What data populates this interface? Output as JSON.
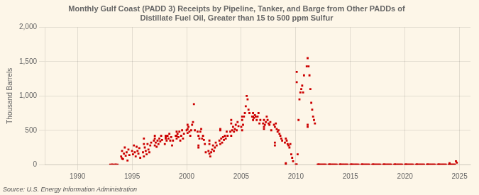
{
  "chart_data": {
    "type": "scatter",
    "title": "Monthly Gulf Coast (PADD 3) Receipts by Pipeline, Tanker, and Barge from Other PADDs of\nDistillate Fuel Oil, Greater than 15 to 500 ppm Sulfur",
    "ylabel": "Thousand Barrels",
    "annotation": "Source: U.S. Energy Information Administration",
    "color": "#cc0000",
    "marker": "square",
    "grid": true,
    "xlim": [
      1987,
      2026
    ],
    "xticks": [
      1990,
      1995,
      2000,
      2005,
      2010,
      2015,
      2020,
      2025
    ],
    "ylim": [
      0,
      2000
    ],
    "yticks": [
      0,
      500,
      {
        "value": 1000,
        "label": "1,000"
      },
      {
        "value": 1500,
        "label": "1,500"
      },
      {
        "value": 2000,
        "label": "2,000"
      }
    ],
    "x": [
      1993,
      1993.1666666667,
      1993.3333333333,
      1993.5,
      1993.6666666667,
      1994,
      1994.0833333333,
      1994.1666666667,
      1994.25,
      1994.3333333333,
      1994.4166666667,
      1994.5,
      1994.5833333333,
      1994.6666666667,
      1994.75,
      1994.0833333333,
      1995,
      1995.0833333333,
      1995.1666666667,
      1995.25,
      1995.3333333333,
      1995.4166666667,
      1995.5,
      1995.5833333333,
      1995.6666666667,
      1995.75,
      1996,
      1996.0833333333,
      1996.1666666667,
      1996.25,
      1996.3333333333,
      1996.4166666667,
      1996.5,
      1996.5833333333,
      1996.6666666667,
      1996.75,
      1996.0833333333,
      1996.0833333333,
      1997,
      1997.0833333333,
      1997.1666666667,
      1997.25,
      1997.3333333333,
      1997.4166666667,
      1997.5,
      1997.5833333333,
      1997.6666666667,
      1997.75,
      1997.0833333333,
      1997.0833333333,
      1998,
      1998.0833333333,
      1998.1666666667,
      1998.25,
      1998.3333333333,
      1998.4166666667,
      1998.5,
      1998.5833333333,
      1998.6666666667,
      1998.75,
      1998.0833333333,
      1998.0833333333,
      1999,
      1999.0833333333,
      1999.1666666667,
      1999.25,
      1999.3333333333,
      1999.4166666667,
      1999.5,
      1999.5833333333,
      1999.6666666667,
      1999.75,
      1999.0833333333,
      1999.0833333333,
      2000,
      2000.0833333333,
      2000.1666666667,
      2000.25,
      2000.3333333333,
      2000.4166666667,
      2000.5,
      2000.5833333333,
      2000.6666666667,
      2000.75,
      2000.0833333333,
      2000.0833333333,
      2001,
      2001.0833333333,
      2001.1666666667,
      2001.25,
      2001.3333333333,
      2001.4166666667,
      2001.5,
      2001.5833333333,
      2001.6666666667,
      2001.75,
      2001.0833333333,
      2001.0833333333,
      2002,
      2002.0833333333,
      2002.1666666667,
      2002.25,
      2002.3333333333,
      2002.4166666667,
      2002.5,
      2002.5833333333,
      2002.6666666667,
      2002.75,
      2002.0833333333,
      2002.0833333333,
      2003,
      2003.0833333333,
      2003.1666666667,
      2003.25,
      2003.3333333333,
      2003.4166666667,
      2003.5,
      2003.5833333333,
      2003.6666666667,
      2003.75,
      2003.0833333333,
      2003.0833333333,
      2004,
      2004.0833333333,
      2004.1666666667,
      2004.25,
      2004.3333333333,
      2004.4166666667,
      2004.5,
      2004.5833333333,
      2004.6666666667,
      2004.75,
      2004.0833333333,
      2004.0833333333,
      2005,
      2005.0833333333,
      2005.1666666667,
      2005.25,
      2005.3333333333,
      2005.4166666667,
      2005.5,
      2005.5833333333,
      2005.6666666667,
      2005.75,
      2005.0833333333,
      2005.0833333333,
      2006,
      2006.0833333333,
      2006.1666666667,
      2006.25,
      2006.3333333333,
      2006.4166666667,
      2006.5,
      2006.5833333333,
      2006.6666666667,
      2006.75,
      2006.0833333333,
      2006.0833333333,
      2007,
      2007.0833333333,
      2007.1666666667,
      2007.25,
      2007.3333333333,
      2007.4166666667,
      2007.5,
      2007.5833333333,
      2007.6666666667,
      2007.75,
      2007.0833333333,
      2007.0833333333,
      2008,
      2008.0833333333,
      2008.1666666667,
      2008.25,
      2008.3333333333,
      2008.4166666667,
      2008.5,
      2008.5833333333,
      2008.6666666667,
      2008.75,
      2008.0833333333,
      2008.0833333333,
      2009,
      2009.0833333333,
      2009.1666666667,
      2009.25,
      2009.3333333333,
      2009.4166666667,
      2009.5,
      2009.5833333333,
      2009.6666666667,
      2009.75,
      2009.0833333333,
      2009.0833333333,
      2010,
      2010.0833333333,
      2010.1666666667,
      2010.25,
      2010.3333333333,
      2010.4166666667,
      2010.5,
      2010.5833333333,
      2010.6666666667,
      2010.75,
      2010.0833333333,
      2010.0833333333,
      2011,
      2011.0833333333,
      2011.1666666667,
      2011.25,
      2011.3333333333,
      2011.4166666667,
      2011.5,
      2011.5833333333,
      2011.6666666667,
      2011.75,
      2011.0833333333,
      2011.0833333333,
      2012,
      2012.0833333333,
      2012.1666666667,
      2012.25,
      2012.3333333333,
      2012.4166666667,
      2012.5,
      2012.5833333333,
      2012.6666666667,
      2012.75,
      2012.0833333333,
      2012.0833333333,
      2013,
      2013.0833333333,
      2013.1666666667,
      2013.25,
      2013.3333333333,
      2013.4166666667,
      2013.5,
      2013.5833333333,
      2013.6666666667,
      2013.75,
      2013.0833333333,
      2013.0833333333,
      2014,
      2014.0833333333,
      2014.1666666667,
      2014.25,
      2014.3333333333,
      2014.4166666667,
      2014.5,
      2014.5833333333,
      2014.6666666667,
      2014.75,
      2014.0833333333,
      2014.0833333333,
      2015,
      2015.0833333333,
      2015.1666666667,
      2015.25,
      2015.3333333333,
      2015.4166666667,
      2015.5,
      2015.5833333333,
      2015.6666666667,
      2015.75,
      2015.0833333333,
      2015.0833333333,
      2016,
      2016.0833333333,
      2016.1666666667,
      2016.25,
      2016.3333333333,
      2016.4166666667,
      2016.5,
      2016.5833333333,
      2016.6666666667,
      2016.75,
      2016.0833333333,
      2016.0833333333,
      2017,
      2017.0833333333,
      2017.1666666667,
      2017.25,
      2017.3333333333,
      2017.4166666667,
      2017.5,
      2017.5833333333,
      2017.6666666667,
      2017.75,
      2017.0833333333,
      2017.0833333333,
      2018,
      2018.0833333333,
      2018.1666666667,
      2018.25,
      2018.3333333333,
      2018.4166666667,
      2018.5,
      2018.5833333333,
      2018.6666666667,
      2018.75,
      2018.0833333333,
      2018.0833333333,
      2019,
      2019.0833333333,
      2019.1666666667,
      2019.25,
      2019.3333333333,
      2019.4166666667,
      2019.5,
      2019.5833333333,
      2019.6666666667,
      2019.75,
      2019.0833333333,
      2019.0833333333,
      2020,
      2020.0833333333,
      2020.1666666667,
      2020.25,
      2020.3333333333,
      2020.4166666667,
      2020.5,
      2020.5833333333,
      2020.6666666667,
      2020.75,
      2020.0833333333,
      2020.0833333333,
      2021,
      2021.0833333333,
      2021.1666666667,
      2021.25,
      2021.3333333333,
      2021.4166666667,
      2021.5,
      2021.5833333333,
      2021.6666666667,
      2021.75,
      2021.0833333333,
      2021.0833333333,
      2022,
      2022.0833333333,
      2022.1666666667,
      2022.25,
      2022.3333333333,
      2022.4166666667,
      2022.5,
      2022.5833333333,
      2022.6666666667,
      2022.75,
      2022.0833333333,
      2022.0833333333,
      2023,
      2023.0833333333,
      2023.1666666667,
      2023.25,
      2023.3333333333,
      2023.4166666667,
      2023.5,
      2023.5833333333,
      2023.6666666667,
      2023.75,
      2023.0833333333,
      2023.0833333333,
      2024,
      2024.0833333333,
      2024.1666666667,
      2024.25,
      2024.3333333333,
      2024.4166666667,
      2024.5,
      2024.5833333333,
      2024.6666666667,
      2024.75,
      2024.0833333333,
      2024.0833333333
    ],
    "values": [
      0,
      2,
      1,
      3,
      0,
      120,
      200,
      80,
      160,
      250,
      130,
      180,
      60,
      220,
      140,
      90,
      200,
      150,
      280,
      180,
      120,
      260,
      200,
      160,
      240,
      100,
      180,
      120,
      250,
      200,
      150,
      300,
      220,
      180,
      280,
      320,
      380,
      300,
      350,
      280,
      320,
      260,
      350,
      300,
      380,
      340,
      420,
      360,
      420,
      380,
      300,
      400,
      350,
      420,
      380,
      450,
      350,
      400,
      280,
      350,
      420,
      380,
      420,
      380,
      450,
      400,
      480,
      350,
      420,
      500,
      380,
      450,
      480,
      420,
      500,
      460,
      550,
      480,
      420,
      500,
      580,
      620,
      880,
      500,
      520,
      580,
      480,
      420,
      380,
      480,
      520,
      380,
      420,
      360,
      300,
      180,
      250,
      280,
      200,
      160,
      120,
      180,
      220,
      280,
      200,
      250,
      320,
      280,
      350,
      300,
      350,
      300,
      380,
      320,
      400,
      360,
      420,
      380,
      480,
      420,
      500,
      520,
      480,
      420,
      500,
      550,
      480,
      520,
      580,
      500,
      620,
      560,
      600,
      650,
      550,
      500,
      580,
      700,
      750,
      850,
      1000,
      950,
      800,
      750,
      700,
      650,
      700,
      750,
      680,
      720,
      700,
      650,
      700,
      750,
      600,
      650,
      700,
      650,
      600,
      650,
      580,
      620,
      700,
      650,
      600,
      580,
      620,
      500,
      550,
      520,
      580,
      550,
      600,
      520,
      480,
      500,
      450,
      420,
      380,
      350,
      320,
      280,
      320,
      380,
      350,
      300,
      280,
      250,
      300,
      150,
      100,
      50,
      20,
      5,
      3,
      2,
      150,
      650,
      950,
      1050,
      1100,
      1150,
      1050,
      1300,
      1200,
      1350,
      1430,
      1550,
      1430,
      1300,
      1100,
      900,
      800,
      700,
      650,
      600,
      580,
      550,
      0,
      0,
      0,
      0,
      0,
      0,
      0,
      0,
      0,
      0,
      0,
      0,
      0,
      0,
      0,
      0,
      0,
      0,
      0,
      0,
      0,
      0,
      0,
      0,
      0,
      0,
      0,
      0,
      0,
      0,
      0,
      0,
      0,
      0,
      0,
      0,
      0,
      0,
      0,
      0,
      0,
      0,
      0,
      0,
      0,
      0,
      0,
      0,
      0,
      0,
      0,
      0,
      0,
      0,
      0,
      0,
      0,
      0,
      0,
      0,
      0,
      0,
      0,
      0,
      0,
      0,
      0,
      0,
      0,
      0,
      0,
      0,
      0,
      0,
      0,
      0,
      0,
      0,
      0,
      0,
      0,
      0,
      0,
      0,
      0,
      0,
      0,
      0,
      0,
      0,
      0,
      0,
      0,
      0,
      0,
      0,
      0,
      0,
      0,
      0,
      0,
      0,
      0,
      0,
      0,
      0,
      0,
      0,
      0,
      0,
      0,
      0,
      0,
      0,
      0,
      0,
      0,
      0,
      0,
      0,
      0,
      0,
      0,
      0,
      0,
      0,
      0,
      0,
      0,
      0,
      0,
      0,
      0,
      0,
      0,
      0,
      0,
      0,
      0,
      0,
      0,
      0,
      0,
      0,
      0,
      0,
      0,
      0,
      0,
      0,
      0,
      0,
      50,
      30,
      20,
      10
    ]
  }
}
